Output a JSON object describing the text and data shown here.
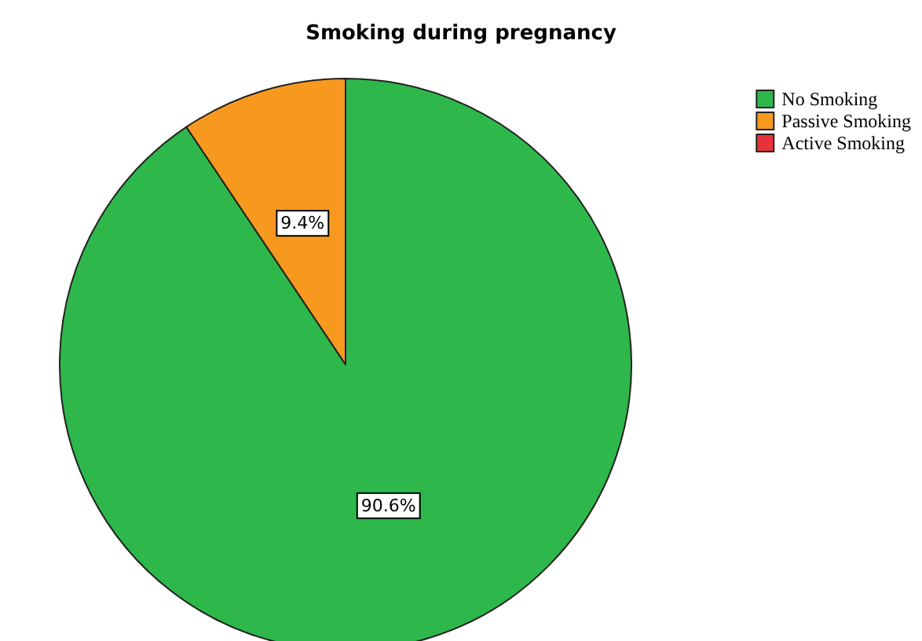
{
  "chart_data": {
    "type": "pie",
    "title": "Smoking during pregnancy",
    "categories": [
      "No Smoking",
      "Passive Smoking",
      "Active Smoking"
    ],
    "values": [
      90.6,
      9.4,
      0
    ],
    "colors": [
      "#2eb84b",
      "#f7991f",
      "#e8323a"
    ],
    "value_labels": [
      "90.6%",
      "9.4%",
      null
    ],
    "legend": "top right"
  }
}
